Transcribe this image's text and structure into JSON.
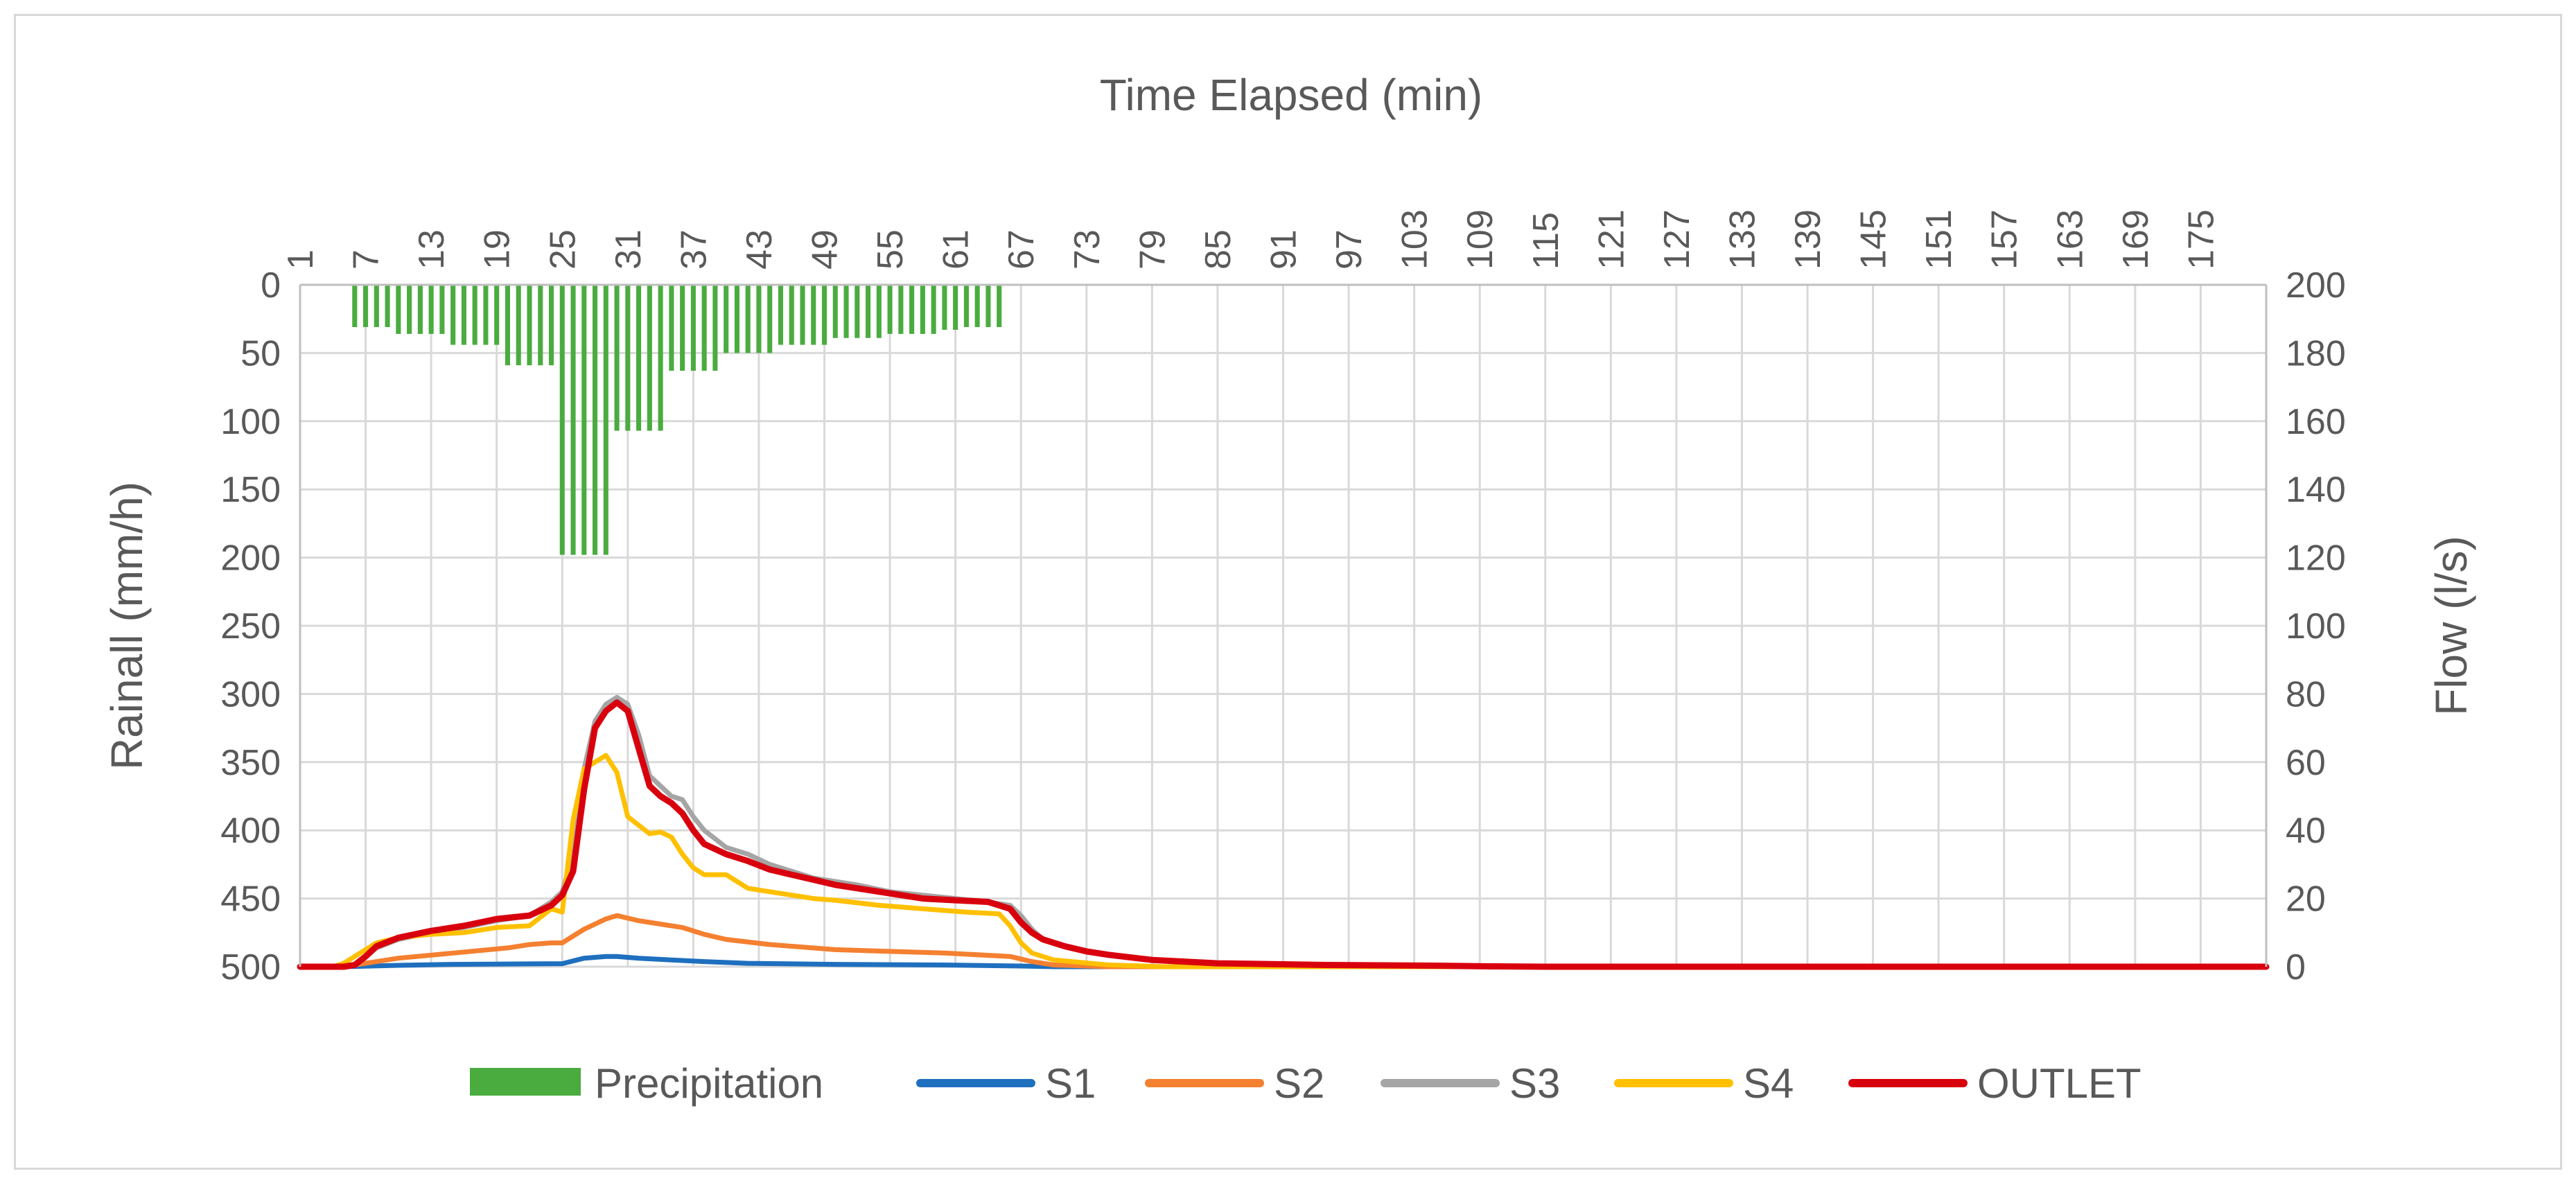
{
  "chart_data": {
    "type": "combo-bar-line",
    "title": "",
    "x_axis": {
      "label": "Time Elapsed (min)",
      "min": 1,
      "max": 181,
      "tick_labels": [
        "1",
        "7",
        "13",
        "19",
        "25",
        "31",
        "37",
        "43",
        "49",
        "55",
        "61",
        "67",
        "73",
        "79",
        "85",
        "91",
        "97",
        "103",
        "109",
        "115",
        "121",
        "127",
        "133",
        "139",
        "145",
        "151",
        "157",
        "163",
        "169",
        "175"
      ],
      "position": "top"
    },
    "left_axis": {
      "label": "Rainall (mm/h)",
      "min": 0,
      "max": 500,
      "step": 50,
      "reversed": true,
      "tick_labels": [
        "0",
        "50",
        "100",
        "150",
        "200",
        "250",
        "300",
        "350",
        "400",
        "450",
        "500"
      ]
    },
    "right_axis": {
      "label": "Flow (l/s)",
      "min": 0,
      "max": 200,
      "step": 20,
      "tick_labels": [
        "0",
        "20",
        "40",
        "60",
        "80",
        "100",
        "120",
        "140",
        "160",
        "180",
        "200"
      ]
    },
    "grid": true,
    "legend_position": "bottom",
    "series": [
      {
        "name": "Precipitation",
        "type": "bar",
        "axis": "left",
        "color": "#4aac3f",
        "points": [
          [
            6,
            31
          ],
          [
            7,
            31
          ],
          [
            8,
            31
          ],
          [
            9,
            31
          ],
          [
            10,
            36
          ],
          [
            11,
            36
          ],
          [
            12,
            36
          ],
          [
            13,
            36
          ],
          [
            14,
            36
          ],
          [
            15,
            44
          ],
          [
            16,
            44
          ],
          [
            17,
            44
          ],
          [
            18,
            44
          ],
          [
            19,
            44
          ],
          [
            20,
            59
          ],
          [
            21,
            59
          ],
          [
            22,
            59
          ],
          [
            23,
            59
          ],
          [
            24,
            59
          ],
          [
            25,
            198
          ],
          [
            26,
            198
          ],
          [
            27,
            198
          ],
          [
            28,
            198
          ],
          [
            29,
            198
          ],
          [
            30,
            107
          ],
          [
            31,
            107
          ],
          [
            32,
            107
          ],
          [
            33,
            107
          ],
          [
            34,
            107
          ],
          [
            35,
            63
          ],
          [
            36,
            63
          ],
          [
            37,
            63
          ],
          [
            38,
            63
          ],
          [
            39,
            63
          ],
          [
            40,
            50
          ],
          [
            41,
            50
          ],
          [
            42,
            50
          ],
          [
            43,
            50
          ],
          [
            44,
            50
          ],
          [
            45,
            44
          ],
          [
            46,
            44
          ],
          [
            47,
            44
          ],
          [
            48,
            44
          ],
          [
            49,
            44
          ],
          [
            50,
            39
          ],
          [
            51,
            39
          ],
          [
            52,
            39
          ],
          [
            53,
            39
          ],
          [
            54,
            39
          ],
          [
            55,
            36
          ],
          [
            56,
            36
          ],
          [
            57,
            36
          ],
          [
            58,
            36
          ],
          [
            59,
            36
          ],
          [
            60,
            33
          ],
          [
            61,
            33
          ],
          [
            62,
            31
          ],
          [
            63,
            31
          ],
          [
            64,
            31
          ],
          [
            65,
            31
          ]
        ]
      },
      {
        "name": "S1",
        "type": "line",
        "axis": "right",
        "color": "#1f6fbf",
        "points": [
          [
            1,
            0
          ],
          [
            5,
            0
          ],
          [
            10,
            0.4
          ],
          [
            15,
            0.7
          ],
          [
            20,
            0.8
          ],
          [
            25,
            0.9
          ],
          [
            27,
            2.5
          ],
          [
            29,
            3
          ],
          [
            30,
            3
          ],
          [
            32,
            2.5
          ],
          [
            35,
            2
          ],
          [
            38,
            1.5
          ],
          [
            42,
            1
          ],
          [
            50,
            0.7
          ],
          [
            60,
            0.5
          ],
          [
            67,
            0.2
          ],
          [
            70,
            0
          ],
          [
            181,
            0
          ]
        ]
      },
      {
        "name": "S2",
        "type": "line",
        "axis": "right",
        "color": "#f48030",
        "points": [
          [
            1,
            0
          ],
          [
            5,
            0
          ],
          [
            7,
            1
          ],
          [
            10,
            2.5
          ],
          [
            15,
            4
          ],
          [
            20,
            5.5
          ],
          [
            22,
            6.5
          ],
          [
            24,
            7
          ],
          [
            25,
            7
          ],
          [
            27,
            11
          ],
          [
            29,
            14
          ],
          [
            30,
            15
          ],
          [
            32,
            13.5
          ],
          [
            34,
            12.5
          ],
          [
            36,
            11.5
          ],
          [
            38,
            9.5
          ],
          [
            40,
            8
          ],
          [
            44,
            6.5
          ],
          [
            50,
            5
          ],
          [
            55,
            4.5
          ],
          [
            60,
            4
          ],
          [
            66,
            3
          ],
          [
            68,
            1.5
          ],
          [
            70,
            0.5
          ],
          [
            75,
            0
          ],
          [
            181,
            0
          ]
        ]
      },
      {
        "name": "S3",
        "type": "line",
        "axis": "right",
        "color": "#a5a5a5",
        "points": [
          [
            1,
            0
          ],
          [
            5,
            0
          ],
          [
            6,
            0.5
          ],
          [
            7,
            3
          ],
          [
            8,
            5.5
          ],
          [
            10,
            8
          ],
          [
            13,
            10
          ],
          [
            16,
            11.5
          ],
          [
            19,
            13.5
          ],
          [
            22,
            15
          ],
          [
            24,
            19
          ],
          [
            25,
            22
          ],
          [
            26,
            33
          ],
          [
            27,
            58
          ],
          [
            28,
            72
          ],
          [
            29,
            77
          ],
          [
            30,
            79
          ],
          [
            31,
            77
          ],
          [
            32,
            68
          ],
          [
            33,
            56
          ],
          [
            34,
            53
          ],
          [
            35,
            50
          ],
          [
            36,
            49
          ],
          [
            37,
            44
          ],
          [
            38,
            40
          ],
          [
            40,
            35
          ],
          [
            42,
            33
          ],
          [
            44,
            30
          ],
          [
            46,
            28
          ],
          [
            48,
            26
          ],
          [
            50,
            25
          ],
          [
            52,
            24
          ],
          [
            55,
            22
          ],
          [
            58,
            21
          ],
          [
            61,
            20
          ],
          [
            64,
            19
          ],
          [
            66,
            18
          ],
          [
            67,
            15
          ],
          [
            68,
            11
          ],
          [
            69,
            8
          ],
          [
            71,
            6
          ],
          [
            73,
            4.5
          ],
          [
            75,
            3.5
          ],
          [
            79,
            2
          ],
          [
            85,
            1
          ],
          [
            95,
            0.5
          ],
          [
            105,
            0.3
          ],
          [
            110,
            0.1
          ],
          [
            115,
            0
          ],
          [
            181,
            0
          ]
        ]
      },
      {
        "name": "S4",
        "type": "line",
        "axis": "right",
        "color": "#ffc000",
        "points": [
          [
            1,
            0
          ],
          [
            4,
            0
          ],
          [
            5,
            1
          ],
          [
            6,
            3
          ],
          [
            7,
            5
          ],
          [
            8,
            7
          ],
          [
            10,
            8.5
          ],
          [
            13,
            9.5
          ],
          [
            16,
            10
          ],
          [
            19,
            11.5
          ],
          [
            22,
            12
          ],
          [
            24,
            17
          ],
          [
            25,
            16
          ],
          [
            26,
            43
          ],
          [
            27,
            58
          ],
          [
            28,
            60
          ],
          [
            29,
            62
          ],
          [
            30,
            57
          ],
          [
            31,
            44
          ],
          [
            33,
            39
          ],
          [
            34,
            39.5
          ],
          [
            35,
            38
          ],
          [
            36,
            33
          ],
          [
            37,
            29
          ],
          [
            38,
            27
          ],
          [
            40,
            27
          ],
          [
            42,
            23
          ],
          [
            44,
            22
          ],
          [
            46,
            21
          ],
          [
            48,
            20
          ],
          [
            50,
            19.5
          ],
          [
            54,
            18
          ],
          [
            58,
            17
          ],
          [
            62,
            16
          ],
          [
            65,
            15.5
          ],
          [
            66,
            12
          ],
          [
            67,
            7
          ],
          [
            68,
            4
          ],
          [
            70,
            2
          ],
          [
            75,
            0.5
          ],
          [
            80,
            0
          ],
          [
            181,
            0
          ]
        ]
      },
      {
        "name": "OUTLET",
        "type": "line",
        "axis": "right",
        "color": "#d9000e",
        "points": [
          [
            1,
            0
          ],
          [
            4,
            0
          ],
          [
            5,
            0
          ],
          [
            6,
            0.5
          ],
          [
            7,
            3
          ],
          [
            8,
            6
          ],
          [
            10,
            8.5
          ],
          [
            13,
            10.5
          ],
          [
            16,
            12
          ],
          [
            19,
            14
          ],
          [
            22,
            15
          ],
          [
            24,
            18
          ],
          [
            25,
            21
          ],
          [
            26,
            28
          ],
          [
            27,
            52
          ],
          [
            28,
            70
          ],
          [
            29,
            75
          ],
          [
            30,
            77.5
          ],
          [
            31,
            75
          ],
          [
            32,
            64
          ],
          [
            33,
            53
          ],
          [
            34,
            50
          ],
          [
            35,
            48
          ],
          [
            36,
            45
          ],
          [
            37,
            40
          ],
          [
            38,
            36
          ],
          [
            40,
            33
          ],
          [
            42,
            31
          ],
          [
            44,
            28.5
          ],
          [
            46,
            27
          ],
          [
            48,
            25.5
          ],
          [
            50,
            24
          ],
          [
            52,
            23
          ],
          [
            55,
            21.5
          ],
          [
            58,
            20
          ],
          [
            61,
            19.5
          ],
          [
            64,
            19
          ],
          [
            66,
            17
          ],
          [
            67,
            13
          ],
          [
            68,
            10
          ],
          [
            69,
            8
          ],
          [
            71,
            6
          ],
          [
            73,
            4.5
          ],
          [
            75,
            3.5
          ],
          [
            79,
            2
          ],
          [
            85,
            1
          ],
          [
            95,
            0.5
          ],
          [
            105,
            0.3
          ],
          [
            110,
            0.1
          ],
          [
            115,
            0
          ],
          [
            181,
            0
          ]
        ]
      }
    ]
  }
}
